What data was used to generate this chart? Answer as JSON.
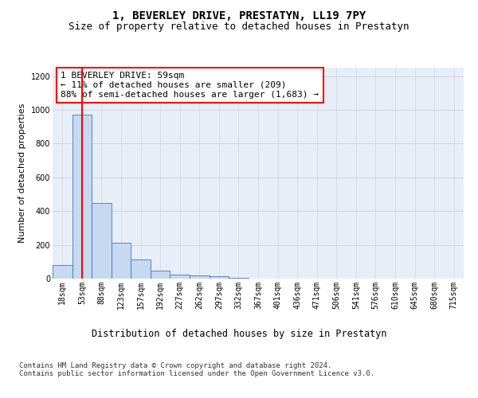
{
  "title": "1, BEVERLEY DRIVE, PRESTATYN, LL19 7PY",
  "subtitle": "Size of property relative to detached houses in Prestatyn",
  "xlabel": "Distribution of detached houses by size in Prestatyn",
  "ylabel": "Number of detached properties",
  "bar_labels": [
    "18sqm",
    "53sqm",
    "88sqm",
    "123sqm",
    "157sqm",
    "192sqm",
    "227sqm",
    "262sqm",
    "297sqm",
    "332sqm",
    "367sqm",
    "401sqm",
    "436sqm",
    "471sqm",
    "506sqm",
    "541sqm",
    "576sqm",
    "610sqm",
    "645sqm",
    "680sqm",
    "715sqm"
  ],
  "bar_values": [
    80,
    970,
    450,
    210,
    115,
    45,
    22,
    18,
    12,
    5,
    0,
    0,
    0,
    0,
    0,
    0,
    0,
    0,
    0,
    0,
    0
  ],
  "bar_color": "#c5d9f1",
  "bar_edge_color": "#4472c4",
  "vline_x": 1.0,
  "vline_color": "#ff0000",
  "annotation_box_text": "1 BEVERLEY DRIVE: 59sqm\n← 11% of detached houses are smaller (209)\n88% of semi-detached houses are larger (1,683) →",
  "ylim": [
    0,
    1250
  ],
  "yticks": [
    0,
    200,
    400,
    600,
    800,
    1000,
    1200
  ],
  "grid_color": "#cdd5e3",
  "bg_color": "#e8eef7",
  "footer": "Contains HM Land Registry data © Crown copyright and database right 2024.\nContains public sector information licensed under the Open Government Licence v3.0.",
  "title_fontsize": 10,
  "subtitle_fontsize": 9,
  "xlabel_fontsize": 8.5,
  "ylabel_fontsize": 8,
  "tick_fontsize": 7,
  "footer_fontsize": 6.5,
  "annot_fontsize": 8
}
